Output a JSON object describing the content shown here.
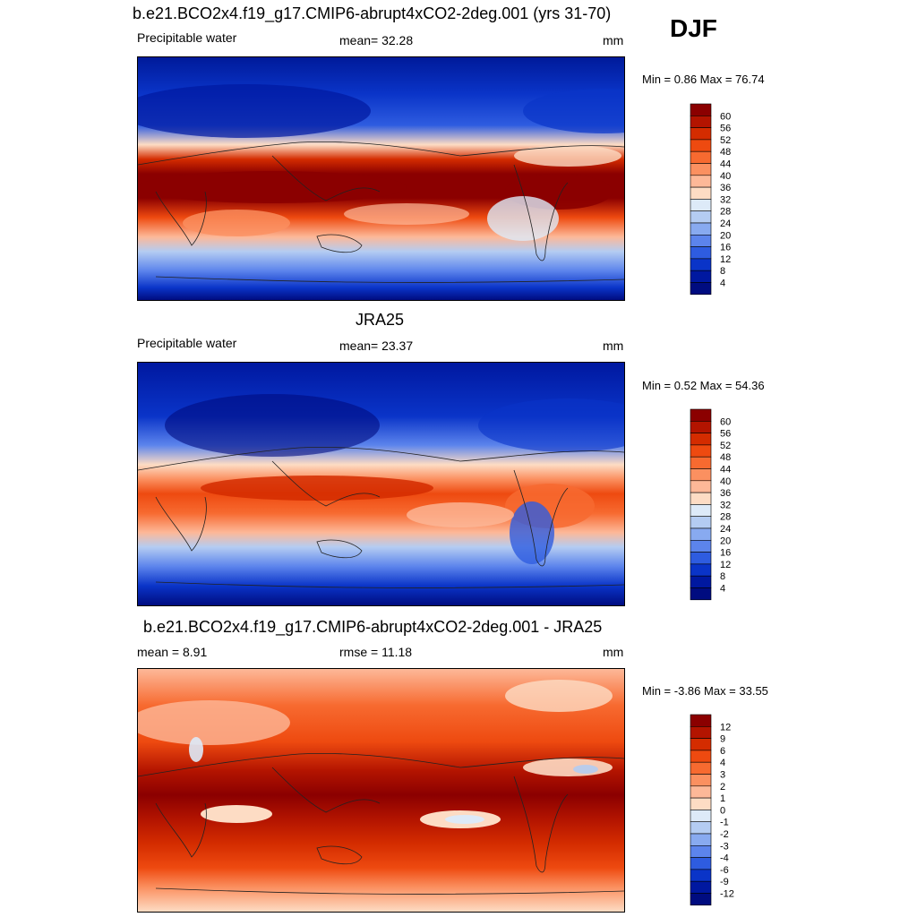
{
  "season": "DJF",
  "panels": [
    {
      "title": "b.e21.BCO2x4.f19_g17.CMIP6-abrupt4xCO2-2deg.001 (yrs 31-70)",
      "left_label": "Precipitable water",
      "center_label": "mean=  32.28",
      "right_label": "mm",
      "minmax": "Min =   0.86 Max =  76.74",
      "scale": "absolute",
      "levels": [
        "60",
        "56",
        "52",
        "48",
        "44",
        "40",
        "36",
        "32",
        "28",
        "24",
        "20",
        "16",
        "12",
        "8",
        "4"
      ],
      "colors": [
        "#8b0000",
        "#b31400",
        "#d42c00",
        "#ee4a10",
        "#f76a30",
        "#fb9060",
        "#fdb898",
        "#fddcc4",
        "#ddeaf8",
        "#b4ccf2",
        "#88aaf0",
        "#5c84ec",
        "#2e5ce0",
        "#0a34c8",
        "#0018a0",
        "#000c80"
      ]
    },
    {
      "title": "JRA25",
      "left_label": "Precipitable water",
      "center_label": "mean=  23.37",
      "right_label": "mm",
      "minmax": "Min =   0.52 Max =  54.36",
      "scale": "absolute",
      "levels": [
        "60",
        "56",
        "52",
        "48",
        "44",
        "40",
        "36",
        "32",
        "28",
        "24",
        "20",
        "16",
        "12",
        "8",
        "4"
      ],
      "colors": [
        "#8b0000",
        "#b31400",
        "#d42c00",
        "#ee4a10",
        "#f76a30",
        "#fb9060",
        "#fdb898",
        "#fddcc4",
        "#ddeaf8",
        "#b4ccf2",
        "#88aaf0",
        "#5c84ec",
        "#2e5ce0",
        "#0a34c8",
        "#0018a0",
        "#000c80"
      ]
    },
    {
      "title": "b.e21.BCO2x4.f19_g17.CMIP6-abrupt4xCO2-2deg.001 - JRA25",
      "left_label": "mean =   8.91",
      "center_label": "rmse =  11.18",
      "right_label": "mm",
      "minmax": "Min =  -3.86 Max =  33.55",
      "scale": "difference",
      "levels": [
        "12",
        "9",
        "6",
        "4",
        "3",
        "2",
        "1",
        "0",
        "-1",
        "-2",
        "-3",
        "-4",
        "-6",
        "-9",
        "-12"
      ],
      "colors": [
        "#8b0000",
        "#b31400",
        "#d42c00",
        "#ee4a10",
        "#f76a30",
        "#fb9060",
        "#fdb898",
        "#fddcc4",
        "#ddeaf8",
        "#b4ccf2",
        "#88aaf0",
        "#5c84ec",
        "#2e5ce0",
        "#0a34c8",
        "#0018a0",
        "#000c80"
      ]
    }
  ]
}
